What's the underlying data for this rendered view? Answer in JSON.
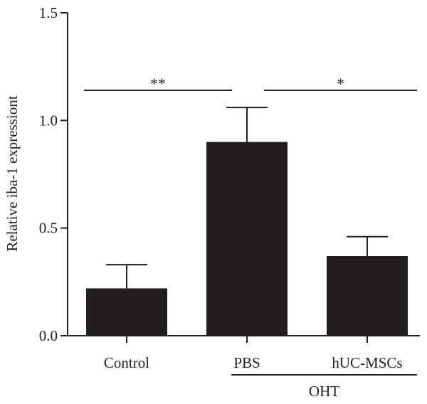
{
  "chart_data": {
    "type": "bar",
    "ylabel": "Relative iba-1 expressiont",
    "ylim": [
      0,
      1.5
    ],
    "yticks": [
      "0.0",
      "0.5",
      "1.0",
      "1.5"
    ],
    "ytick_values": [
      0,
      0.5,
      1.0,
      1.5
    ],
    "categories": [
      "Control",
      "PBS",
      "hUC-MSCs"
    ],
    "values": [
      0.22,
      0.9,
      0.37
    ],
    "errors": [
      0.11,
      0.16,
      0.09
    ],
    "group": {
      "label": "OHT",
      "members": [
        "PBS",
        "hUC-MSCs"
      ]
    },
    "significance": [
      {
        "from": "Control",
        "to": "PBS",
        "label": "**"
      },
      {
        "from": "PBS",
        "to": "hUC-MSCs",
        "label": "*"
      }
    ],
    "bar_color": "#231f20",
    "grid": false
  }
}
